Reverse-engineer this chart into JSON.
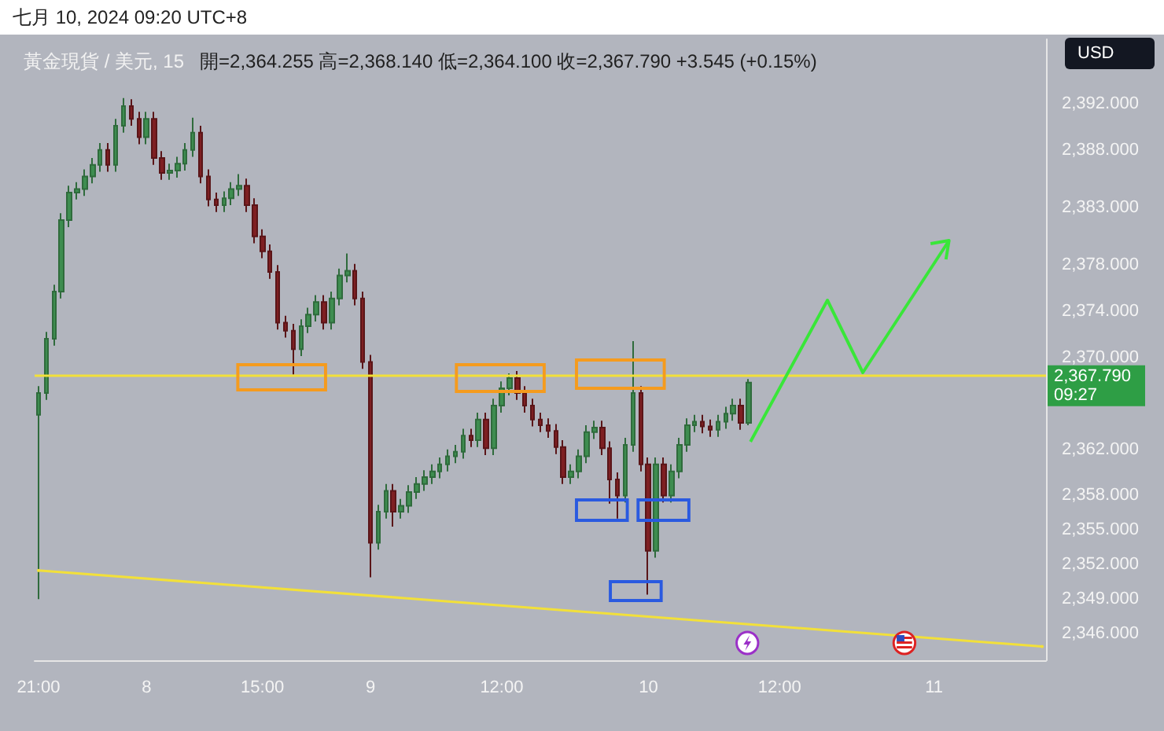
{
  "chart_data": {
    "type": "candlestick",
    "title": "黃金現貨 / 美元, 15",
    "subtitle": "開=2,364.255 高=2,368.140 低=2,364.100 收=2,367.790 +3.545 (+0.15%)",
    "ylabel": "USD",
    "annotations": [
      "七月 10, 2024 09:20 UTC+8",
      "2,367.790\n09:27"
    ],
    "categories": [
      "21:00",
      null,
      null,
      null,
      null,
      null,
      null,
      null,
      null,
      null,
      null,
      null,
      null,
      null,
      "8",
      null,
      null,
      null,
      null,
      null,
      null,
      null,
      null,
      null,
      null,
      null,
      null,
      null,
      null,
      "15:00",
      null,
      null,
      null,
      null,
      null,
      null,
      null,
      null,
      null,
      null,
      null,
      null,
      null,
      "9",
      null,
      null,
      null,
      null,
      null,
      null,
      null,
      null,
      null,
      null,
      null,
      null,
      null,
      null,
      null,
      null,
      "12:00",
      null,
      null,
      null,
      null,
      null,
      null,
      null,
      null,
      null,
      null,
      null,
      null,
      null,
      null,
      null,
      null,
      null,
      null,
      "10",
      null,
      null,
      null,
      null,
      null,
      null,
      null,
      null,
      null,
      null,
      null,
      null,
      null,
      null,
      null,
      null,
      "12:00",
      null,
      null,
      null,
      null,
      null,
      null,
      null,
      null,
      null,
      null,
      null,
      null,
      null,
      null,
      null,
      null,
      null,
      null,
      null,
      "11",
      null,
      null,
      null,
      null,
      null,
      null,
      null,
      null,
      null,
      null,
      null,
      null,
      null,
      null
    ],
    "ohlc": [
      [
        2365.0,
        2367.5,
        2349.0,
        2366.9
      ],
      [
        2366.9,
        2372.2,
        2366.3,
        2371.6
      ],
      [
        2371.6,
        2376.3,
        2371.0,
        2375.7
      ],
      [
        2375.7,
        2382.5,
        2375.1,
        2381.9
      ],
      [
        2381.9,
        2384.9,
        2381.3,
        2384.3
      ],
      [
        2384.3,
        2385.2,
        2383.7,
        2384.6
      ],
      [
        2384.6,
        2386.3,
        2384.0,
        2385.7
      ],
      [
        2385.7,
        2387.3,
        2385.1,
        2386.7
      ],
      [
        2386.7,
        2388.6,
        2386.1,
        2388.0
      ],
      [
        2388.0,
        2388.6,
        2386.1,
        2386.7
      ],
      [
        2386.7,
        2390.7,
        2386.1,
        2390.1
      ],
      [
        2390.1,
        2392.5,
        2389.5,
        2391.8
      ],
      [
        2391.8,
        2392.4,
        2390.1,
        2390.7
      ],
      [
        2390.7,
        2391.3,
        2388.5,
        2389.1
      ],
      [
        2389.1,
        2391.3,
        2388.5,
        2390.7
      ],
      [
        2390.7,
        2391.3,
        2386.7,
        2387.3
      ],
      [
        2387.3,
        2387.9,
        2385.4,
        2386.0
      ],
      [
        2386.0,
        2386.8,
        2385.4,
        2386.2
      ],
      [
        2386.2,
        2387.4,
        2385.6,
        2386.8
      ],
      [
        2386.8,
        2388.6,
        2386.2,
        2388.0
      ],
      [
        2388.0,
        2390.8,
        2387.4,
        2389.5
      ],
      [
        2389.5,
        2390.1,
        2385.1,
        2385.7
      ],
      [
        2385.7,
        2386.3,
        2383.1,
        2383.7
      ],
      [
        2383.7,
        2384.3,
        2382.6,
        2383.2
      ],
      [
        2383.2,
        2384.4,
        2382.6,
        2383.8
      ],
      [
        2383.8,
        2385.2,
        2383.2,
        2384.6
      ],
      [
        2384.6,
        2385.9,
        2384.0,
        2384.9
      ],
      [
        2384.9,
        2385.5,
        2382.6,
        2383.2
      ],
      [
        2383.2,
        2383.8,
        2379.9,
        2380.5
      ],
      [
        2380.5,
        2381.1,
        2378.6,
        2379.2
      ],
      [
        2379.2,
        2379.8,
        2376.8,
        2377.4
      ],
      [
        2377.4,
        2378.0,
        2372.4,
        2373.0
      ],
      [
        2373.0,
        2373.6,
        2371.7,
        2372.3
      ],
      [
        2372.3,
        2372.9,
        2368.5,
        2370.7
      ],
      [
        2370.7,
        2373.3,
        2370.1,
        2372.7
      ],
      [
        2372.7,
        2374.3,
        2372.1,
        2373.7
      ],
      [
        2373.7,
        2375.4,
        2373.1,
        2374.8
      ],
      [
        2374.8,
        2375.4,
        2372.4,
        2373.0
      ],
      [
        2373.0,
        2375.7,
        2372.4,
        2375.1
      ],
      [
        2375.1,
        2377.7,
        2374.5,
        2377.1
      ],
      [
        2377.1,
        2379.0,
        2376.5,
        2377.5
      ],
      [
        2377.5,
        2378.1,
        2374.5,
        2375.1
      ],
      [
        2375.1,
        2375.7,
        2369.0,
        2369.6
      ],
      [
        2369.6,
        2370.2,
        2350.9,
        2353.9
      ],
      [
        2353.9,
        2357.2,
        2353.3,
        2356.6
      ],
      [
        2356.6,
        2359.0,
        2356.0,
        2358.4
      ],
      [
        2358.4,
        2359.0,
        2355.3,
        2356.6
      ],
      [
        2356.6,
        2357.7,
        2356.0,
        2357.1
      ],
      [
        2357.1,
        2358.9,
        2356.5,
        2358.3
      ],
      [
        2358.3,
        2359.6,
        2357.7,
        2359.0
      ],
      [
        2359.0,
        2360.2,
        2358.4,
        2359.6
      ],
      [
        2359.6,
        2360.7,
        2359.0,
        2360.1
      ],
      [
        2360.1,
        2361.3,
        2359.5,
        2360.7
      ],
      [
        2360.7,
        2362.0,
        2360.1,
        2361.4
      ],
      [
        2361.4,
        2362.4,
        2360.8,
        2361.8
      ],
      [
        2361.8,
        2363.8,
        2361.2,
        2363.2
      ],
      [
        2363.2,
        2363.8,
        2362.2,
        2362.8
      ],
      [
        2362.8,
        2365.2,
        2362.2,
        2364.6
      ],
      [
        2364.6,
        2365.2,
        2361.5,
        2362.1
      ],
      [
        2362.1,
        2366.4,
        2361.5,
        2365.8
      ],
      [
        2365.8,
        2367.9,
        2365.2,
        2367.3
      ],
      [
        2367.3,
        2368.6,
        2366.7,
        2368.2
      ],
      [
        2368.2,
        2368.8,
        2366.3,
        2366.9
      ],
      [
        2366.9,
        2367.5,
        2365.2,
        2365.8
      ],
      [
        2365.8,
        2366.4,
        2364.0,
        2364.6
      ],
      [
        2364.6,
        2365.2,
        2363.5,
        2364.1
      ],
      [
        2364.1,
        2364.7,
        2363.0,
        2363.6
      ],
      [
        2363.6,
        2364.2,
        2361.6,
        2362.2
      ],
      [
        2362.2,
        2362.8,
        2359.0,
        2359.6
      ],
      [
        2359.6,
        2360.7,
        2359.0,
        2360.1
      ],
      [
        2360.1,
        2362.0,
        2359.5,
        2361.4
      ],
      [
        2361.4,
        2364.1,
        2360.8,
        2363.5
      ],
      [
        2363.5,
        2364.5,
        2362.9,
        2363.9
      ],
      [
        2363.9,
        2364.5,
        2361.5,
        2362.1
      ],
      [
        2362.1,
        2362.7,
        2357.3,
        2359.4
      ],
      [
        2359.4,
        2360.0,
        2356.0,
        2358.0
      ],
      [
        2358.0,
        2363.0,
        2357.4,
        2362.4
      ],
      [
        2362.4,
        2371.4,
        2361.8,
        2366.9
      ],
      [
        2366.9,
        2367.5,
        2360.1,
        2360.7
      ],
      [
        2360.7,
        2361.3,
        2349.4,
        2353.2
      ],
      [
        2353.2,
        2361.3,
        2352.6,
        2360.7
      ],
      [
        2360.7,
        2361.3,
        2357.4,
        2358.0
      ],
      [
        2358.0,
        2360.7,
        2357.4,
        2360.1
      ],
      [
        2360.1,
        2363.0,
        2359.5,
        2362.4
      ],
      [
        2362.4,
        2364.7,
        2361.8,
        2364.1
      ],
      [
        2364.1,
        2365.0,
        2363.5,
        2364.4
      ],
      [
        2364.4,
        2365.0,
        2363.4,
        2364.0
      ],
      [
        2364.0,
        2364.6,
        2363.1,
        2363.7
      ],
      [
        2363.7,
        2365.0,
        2363.1,
        2364.4
      ],
      [
        2364.4,
        2365.7,
        2363.8,
        2365.1
      ],
      [
        2365.1,
        2366.4,
        2364.5,
        2365.8
      ],
      [
        2365.8,
        2366.4,
        2363.7,
        2364.3
      ],
      [
        2364.3,
        2368.1,
        2364.1,
        2367.8
      ],
      null,
      null,
      null,
      null,
      null,
      null,
      null,
      null,
      null,
      null,
      null,
      null,
      null,
      null,
      null,
      null,
      null,
      null,
      null,
      null,
      null,
      null,
      null,
      null,
      null,
      null,
      null,
      null,
      null,
      null,
      null,
      null,
      null,
      null,
      null,
      null,
      null,
      null
    ],
    "series": [
      {
        "type": "line",
        "color": "#f2e03a",
        "values": [
          2351.5,
          null,
          null,
          null,
          null,
          null,
          null,
          null,
          null,
          null,
          null,
          null,
          null,
          null,
          null,
          null,
          null,
          null,
          null,
          null,
          null,
          null,
          null,
          null,
          null,
          null,
          null,
          null,
          null,
          null,
          null,
          null,
          null,
          null,
          null,
          null,
          null,
          null,
          null,
          null,
          null,
          null,
          null,
          null,
          null,
          null,
          null,
          null,
          null,
          null,
          null,
          null,
          null,
          null,
          null,
          null,
          null,
          null,
          null,
          null,
          null,
          null,
          null,
          null,
          null,
          null,
          null,
          null,
          null,
          null,
          null,
          null,
          null,
          null,
          null,
          null,
          null,
          null,
          null,
          null,
          null,
          null,
          null,
          null,
          null,
          null,
          null,
          null,
          null,
          null,
          null,
          null,
          null,
          null,
          null,
          null,
          null,
          null,
          null,
          null,
          null,
          null,
          null,
          null,
          null,
          null,
          null,
          null,
          null,
          null,
          null,
          null,
          null,
          null,
          null,
          null,
          null,
          null,
          null,
          null,
          null,
          null,
          null,
          null,
          null,
          null,
          null,
          null,
          null,
          null,
          2344.9
        ]
      }
    ],
    "ref_lines": [
      {
        "axis": "y",
        "value": 2368.5,
        "color": "#f2e03a"
      }
    ],
    "ylim": [
      2343.7,
      2397.6
    ],
    "yticks": [
      {
        "value": 2346,
        "label": "2,346.000"
      },
      {
        "value": 2349,
        "label": "2,349.000"
      },
      {
        "value": 2352,
        "label": "2,352.000"
      },
      {
        "value": 2355,
        "label": "2,355.000"
      },
      {
        "value": 2358,
        "label": "2,358.000"
      },
      {
        "value": 2362,
        "label": "2,362.000"
      },
      {
        "value": 2370,
        "label": "2,370.000"
      },
      {
        "value": 2374,
        "label": "2,374.000"
      },
      {
        "value": 2378,
        "label": "2,378.000"
      },
      {
        "value": 2383,
        "label": "2,383.000"
      },
      {
        "value": 2388,
        "label": "2,388.000"
      },
      {
        "value": 2392,
        "label": "2,392.000"
      }
    ]
  }
}
